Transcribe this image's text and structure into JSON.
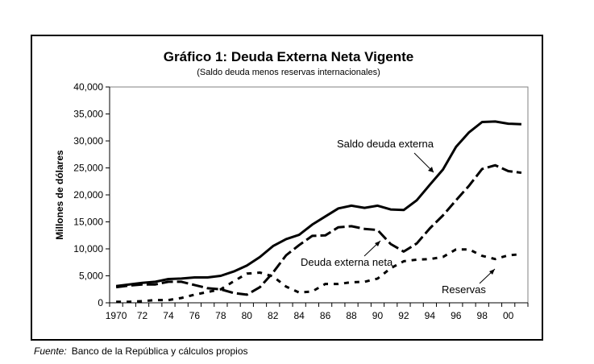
{
  "chart_data": {
    "type": "line",
    "title": "Gráfico 1: Deuda Externa Neta Vigente",
    "subtitle": "(Saldo deuda menos reservas internacionales)",
    "xlabel": "",
    "ylabel": "Millones de dólares",
    "ylim": [
      0,
      40000
    ],
    "yticks": [
      "0",
      "5,000",
      "10,000",
      "15,000",
      "20,000",
      "25,000",
      "30,000",
      "35,000",
      "40,000"
    ],
    "ytick_values": [
      0,
      5000,
      10000,
      15000,
      20000,
      25000,
      30000,
      35000,
      40000
    ],
    "x": [
      1970,
      1971,
      1972,
      1973,
      1974,
      1975,
      1976,
      1977,
      1978,
      1979,
      1980,
      1981,
      1982,
      1983,
      1984,
      1985,
      1986,
      1987,
      1988,
      1989,
      1990,
      1991,
      1992,
      1993,
      1994,
      1995,
      1996,
      1997,
      1998,
      1999,
      2000,
      2001
    ],
    "xtick_labels": [
      "1970",
      "72",
      "74",
      "76",
      "78",
      "80",
      "82",
      "84",
      "86",
      "88",
      "90",
      "92",
      "94",
      "96",
      "98",
      "00"
    ],
    "grid": false,
    "series": [
      {
        "name": "Saldo deuda externa",
        "style": "solid",
        "values": [
          3100,
          3400,
          3700,
          3900,
          4400,
          4500,
          4700,
          4700,
          5000,
          5800,
          6900,
          8500,
          10500,
          11800,
          12600,
          14500,
          16000,
          17500,
          18000,
          17600,
          18000,
          17300,
          17200,
          19000,
          21900,
          24700,
          28900,
          31600,
          33500,
          33600,
          33200,
          33100
        ]
      },
      {
        "name": "Deuda externa neta",
        "style": "long-dash",
        "values": [
          2900,
          3200,
          3400,
          3400,
          3900,
          3900,
          3300,
          2700,
          2500,
          1800,
          1500,
          2900,
          5600,
          8800,
          10700,
          12400,
          12500,
          14000,
          14200,
          13700,
          13500,
          10900,
          9500,
          11000,
          13800,
          16200,
          19000,
          21700,
          24800,
          25500,
          24400,
          24100
        ]
      },
      {
        "name": "Reservas",
        "style": "short-dash",
        "values": [
          200,
          200,
          300,
          500,
          500,
          900,
          1500,
          2000,
          2500,
          4000,
          5400,
          5600,
          4900,
          3000,
          1900,
          2100,
          3500,
          3500,
          3800,
          3900,
          4500,
          6400,
          7700,
          8000,
          8100,
          8500,
          9900,
          9900,
          8700,
          8100,
          8800,
          9000
        ]
      }
    ],
    "annotations": [
      {
        "text": "Saldo deuda externa",
        "points_to": "Saldo deuda externa",
        "near_x": 1994
      },
      {
        "text": "Deuda externa neta",
        "points_to": "Deuda externa neta",
        "near_x": 1989
      },
      {
        "text": "Reservas",
        "points_to": "Reservas",
        "near_x": 1999
      }
    ],
    "source_label": "Fuente:",
    "source_text": "Banco de la República y cálculos propios"
  }
}
